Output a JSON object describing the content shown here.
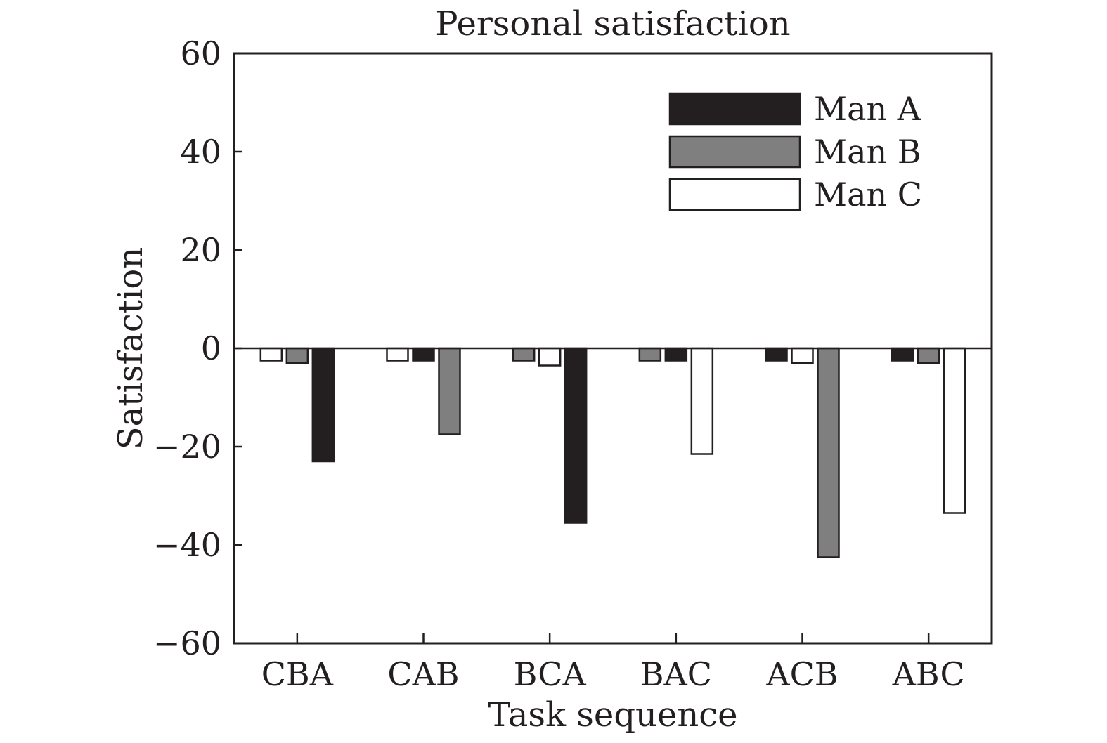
{
  "chart_data": {
    "type": "bar",
    "title": "Personal satisfaction",
    "xlabel": "Task sequence",
    "ylabel": "Satisfaction",
    "categories": [
      "CBA",
      "CAB",
      "BCA",
      "BAC",
      "ACB",
      "ABC"
    ],
    "ylim": [
      -60,
      60
    ],
    "yticks": [
      60,
      40,
      20,
      0,
      -20,
      -40,
      -60
    ],
    "ytick_labels": [
      "60",
      "40",
      "20",
      "0",
      "−20",
      "−40",
      "−60"
    ],
    "legend_position": "top-right",
    "grid": false,
    "series": [
      {
        "name": "Man A",
        "color": "#231f20",
        "values": [
          -23,
          -2.5,
          -35.5,
          -2.5,
          -2.5,
          -2.5
        ]
      },
      {
        "name": "Man B",
        "color": "#7f7f7f",
        "values": [
          -3,
          -17.5,
          -2.5,
          -2.5,
          -42.5,
          -3
        ]
      },
      {
        "name": "Man C",
        "color": "#ffffff",
        "values": [
          -2.5,
          -2.5,
          -3.5,
          -21.5,
          -3,
          -33.5
        ]
      }
    ],
    "bar_order": [
      [
        "Man C",
        "Man B",
        "Man A"
      ],
      [
        "Man C",
        "Man A",
        "Man B"
      ],
      [
        "Man B",
        "Man C",
        "Man A"
      ],
      [
        "Man B",
        "Man A",
        "Man C"
      ],
      [
        "Man A",
        "Man C",
        "Man B"
      ],
      [
        "Man A",
        "Man B",
        "Man C"
      ]
    ]
  }
}
